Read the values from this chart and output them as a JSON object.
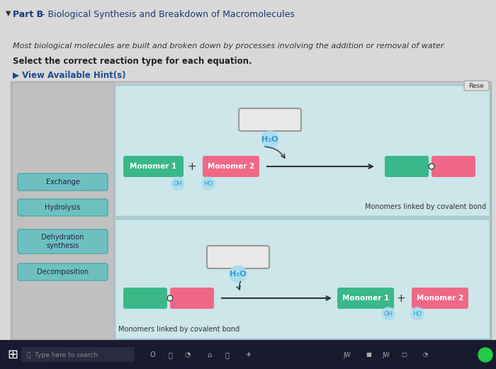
{
  "title_bullet": "▼",
  "title_bold": "Part B",
  "title_dash": " - ",
  "title_rest": "Biological Synthesis and Breakdown of Macromolecules",
  "subtitle1": "Most biological molecules are built and broken down by processes involving the addition or removal of water.",
  "subtitle2": "Select the correct reaction type for each equation.",
  "hint_text": "▶ View Available Hint(s)",
  "reset_text": "Rese",
  "page_bg": "#d8d8d8",
  "outer_panel_bg": "#c8c8c8",
  "inner_panel_bg": "#cce6ea",
  "left_panel_bg": "#c0c0c0",
  "btn_bg": "#6ec0c0",
  "btn_border": "#4aa8a8",
  "btn_text": "#222244",
  "button_labels": [
    "Exchange",
    "Hydrolysis",
    "Dehydration\nsynthesis",
    "Decomposition"
  ],
  "teal_color": "#3ab88a",
  "pink_color": "#f06888",
  "monomer1_label": "Monomer 1",
  "monomer2_label": "Monomer 2",
  "h2o_label": "H₂O",
  "oh_label": "OH",
  "ho_label": "HO",
  "covalent_label": "Monomers linked by covalent bond",
  "arrow_color": "#333333",
  "text_color": "#333333",
  "h2o_color": "#3399cc",
  "oh_color": "#3399cc",
  "taskbar_color": "#1a1a2e",
  "taskbar_text": "#888888",
  "reset_bg": "#e0e0e0",
  "reset_border": "#aaaaaa",
  "answer_box_bg": "#e8e8e8",
  "answer_box_border": "#999999"
}
